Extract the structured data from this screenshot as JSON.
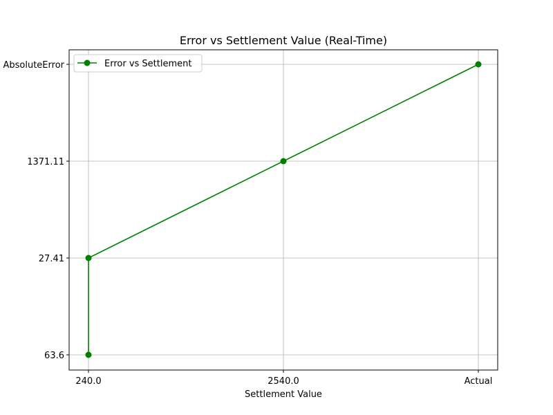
{
  "chart_data": {
    "type": "line",
    "title": "Error vs Settlement Value (Real-Time)",
    "xlabel": "Settlement Value",
    "ylabel": "",
    "x_categories": [
      "240.0",
      "2540.0",
      "Actual"
    ],
    "y_categories": [
      "63.6",
      "27.41",
      "1371.11",
      "AbsoluteError"
    ],
    "series": [
      {
        "name": "Error vs Settlement",
        "color": "#008000",
        "marker": "circle",
        "points": [
          {
            "x": "240.0",
            "y": "63.6"
          },
          {
            "x": "240.0",
            "y": "27.41"
          },
          {
            "x": "2540.0",
            "y": "1371.11"
          },
          {
            "x": "Actual",
            "y": "AbsoluteError"
          }
        ]
      }
    ],
    "grid": true,
    "legend_position": "top-left"
  }
}
